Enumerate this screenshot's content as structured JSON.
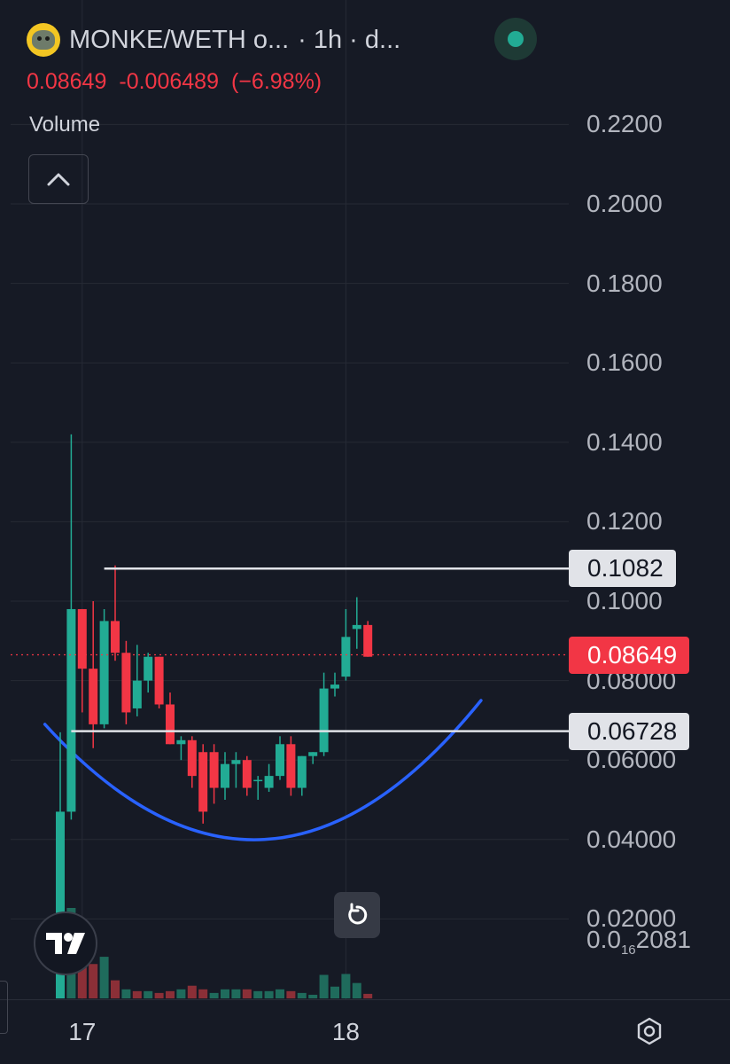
{
  "header": {
    "symbol": "MONKE/WETH o...",
    "interval": "· 1h · d...",
    "last_price": "0.08649",
    "change": "-0.006489",
    "change_pct": "(−6.98%)",
    "volume_label": "Volume"
  },
  "price_axis": {
    "ticks": [
      {
        "label": "0.2200",
        "value": 0.22
      },
      {
        "label": "0.2000",
        "value": 0.2
      },
      {
        "label": "0.1800",
        "value": 0.18
      },
      {
        "label": "0.1600",
        "value": 0.16
      },
      {
        "label": "0.1400",
        "value": 0.14
      },
      {
        "label": "0.1200",
        "value": 0.12
      },
      {
        "label": "0.1000",
        "value": 0.1
      },
      {
        "label": "0.08000",
        "value": 0.08
      },
      {
        "label": "0.06000",
        "value": 0.06
      },
      {
        "label": "0.04000",
        "value": 0.04
      },
      {
        "label": "0.02000",
        "value": 0.02
      }
    ],
    "bottom_label_prefix": "0.0",
    "bottom_label_sub": "16",
    "bottom_label_suffix": "2081"
  },
  "time_axis": {
    "labels": [
      {
        "label": "17",
        "index": 2
      },
      {
        "label": "18",
        "index": 26
      }
    ]
  },
  "colors": {
    "up": "#22ab94",
    "down": "#f23645",
    "background": "#161a25",
    "grid": "#262a35",
    "hline": "#e1e3e8",
    "curve": "#2962ff"
  },
  "chart_data": {
    "type": "candlestick",
    "ylim": [
      0,
      0.23
    ],
    "candles": [
      {
        "o": 0.0,
        "h": 0.067,
        "l": 0.0,
        "c": 0.047
      },
      {
        "o": 0.047,
        "h": 0.142,
        "l": 0.045,
        "c": 0.098
      },
      {
        "o": 0.098,
        "h": 0.098,
        "l": 0.072,
        "c": 0.083
      },
      {
        "o": 0.083,
        "h": 0.1,
        "l": 0.063,
        "c": 0.069
      },
      {
        "o": 0.069,
        "h": 0.098,
        "l": 0.068,
        "c": 0.095
      },
      {
        "o": 0.095,
        "h": 0.109,
        "l": 0.085,
        "c": 0.087
      },
      {
        "o": 0.087,
        "h": 0.09,
        "l": 0.069,
        "c": 0.072
      },
      {
        "o": 0.073,
        "h": 0.089,
        "l": 0.071,
        "c": 0.08
      },
      {
        "o": 0.08,
        "h": 0.087,
        "l": 0.077,
        "c": 0.086
      },
      {
        "o": 0.086,
        "h": 0.086,
        "l": 0.073,
        "c": 0.074
      },
      {
        "o": 0.074,
        "h": 0.077,
        "l": 0.064,
        "c": 0.064
      },
      {
        "o": 0.064,
        "h": 0.066,
        "l": 0.06,
        "c": 0.065
      },
      {
        "o": 0.065,
        "h": 0.066,
        "l": 0.053,
        "c": 0.056
      },
      {
        "o": 0.062,
        "h": 0.064,
        "l": 0.044,
        "c": 0.047
      },
      {
        "o": 0.062,
        "h": 0.064,
        "l": 0.049,
        "c": 0.053
      },
      {
        "o": 0.053,
        "h": 0.062,
        "l": 0.05,
        "c": 0.059
      },
      {
        "o": 0.059,
        "h": 0.062,
        "l": 0.053,
        "c": 0.06
      },
      {
        "o": 0.06,
        "h": 0.061,
        "l": 0.051,
        "c": 0.053
      },
      {
        "o": 0.055,
        "h": 0.056,
        "l": 0.05,
        "c": 0.055
      },
      {
        "o": 0.053,
        "h": 0.059,
        "l": 0.052,
        "c": 0.056
      },
      {
        "o": 0.056,
        "h": 0.066,
        "l": 0.055,
        "c": 0.064
      },
      {
        "o": 0.064,
        "h": 0.066,
        "l": 0.051,
        "c": 0.053
      },
      {
        "o": 0.053,
        "h": 0.061,
        "l": 0.051,
        "c": 0.061
      },
      {
        "o": 0.061,
        "h": 0.062,
        "l": 0.059,
        "c": 0.062
      },
      {
        "o": 0.062,
        "h": 0.082,
        "l": 0.061,
        "c": 0.078
      },
      {
        "o": 0.078,
        "h": 0.082,
        "l": 0.076,
        "c": 0.079
      },
      {
        "o": 0.081,
        "h": 0.098,
        "l": 0.08,
        "c": 0.091
      },
      {
        "o": 0.093,
        "h": 0.101,
        "l": 0.088,
        "c": 0.094
      },
      {
        "o": 0.094,
        "h": 0.095,
        "l": 0.086,
        "c": 0.086
      }
    ],
    "volume": [
      0.78,
      1.0,
      0.42,
      0.38,
      0.46,
      0.2,
      0.1,
      0.08,
      0.08,
      0.06,
      0.08,
      0.1,
      0.14,
      0.1,
      0.06,
      0.1,
      0.1,
      0.1,
      0.08,
      0.08,
      0.1,
      0.08,
      0.06,
      0.04,
      0.26,
      0.13,
      0.27,
      0.17,
      0.05
    ],
    "volume_up": [
      true,
      true,
      false,
      false,
      true,
      false,
      true,
      false,
      true,
      false,
      false,
      true,
      false,
      false,
      true,
      true,
      true,
      false,
      true,
      true,
      true,
      false,
      true,
      true,
      true,
      true,
      true,
      true,
      false
    ],
    "horizontal_lines": [
      {
        "price": 0.1082,
        "label": "0.1082",
        "from_index": 4
      },
      {
        "price": 0.06728,
        "label": "0.06728",
        "from_index": 1
      }
    ],
    "current_price": {
      "price": 0.08649,
      "label": "0.08649"
    },
    "curve": {
      "start_index": -1.4,
      "end_index": 38.3,
      "start_price": 0.069,
      "bottom_index": 18.7,
      "bottom_price": 0.04,
      "end_price": 0.075
    }
  },
  "icons": {
    "collapse": "chevron-up-icon",
    "reset": "rotate-icon",
    "settings": "settings-icon",
    "logo": "tradingview-logo-icon"
  }
}
